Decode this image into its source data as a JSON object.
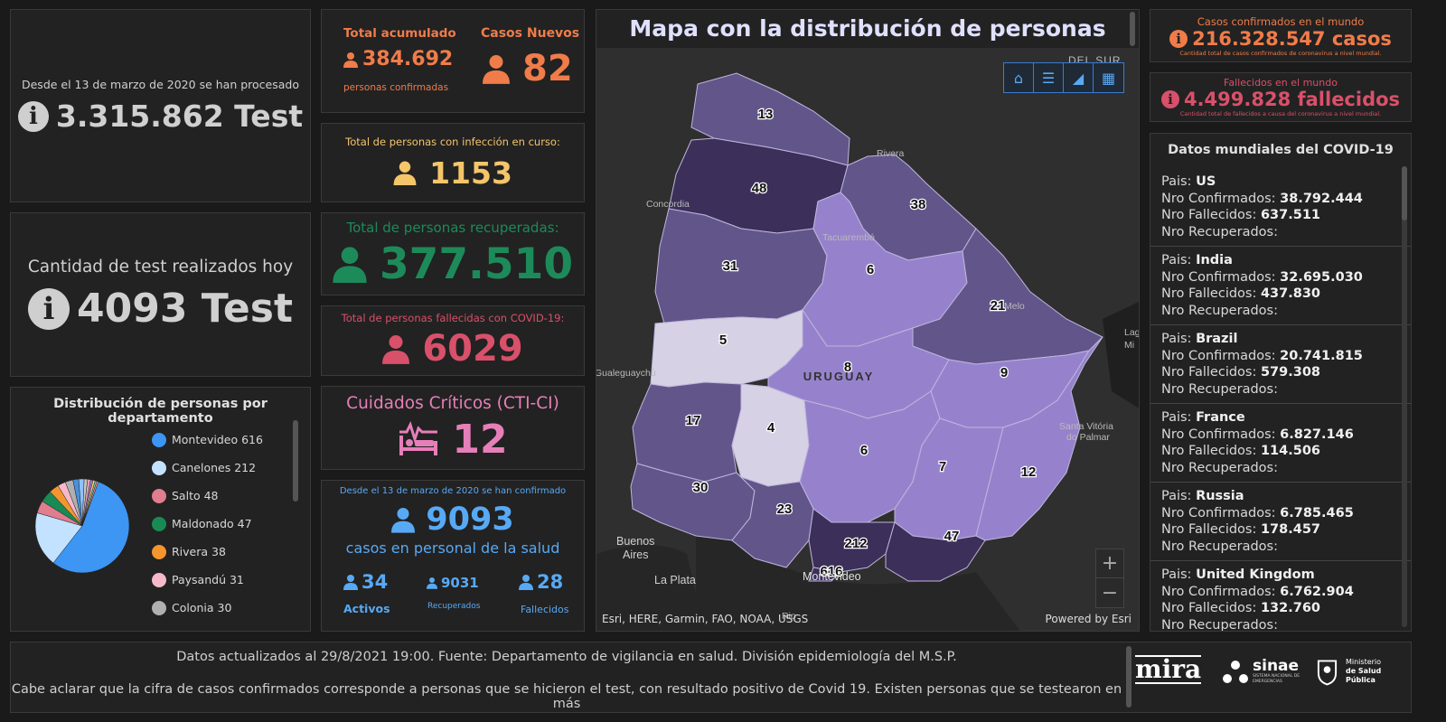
{
  "tests_total": {
    "caption": "Desde el 13 de marzo de 2020 se han procesado",
    "value": "3.315.862 Test"
  },
  "tests_today": {
    "caption": "Cantidad de test realizados hoy",
    "value": "4093 Test"
  },
  "accumulated": {
    "label": "Total acumulado",
    "value": "384.692",
    "sublabel": "personas confirmadas"
  },
  "new_cases": {
    "label": "Casos Nuevos",
    "value": "82"
  },
  "active": {
    "label": "Total de personas con infección en curso:",
    "value": "1153"
  },
  "recovered": {
    "label": "Total de personas recuperadas:",
    "value": "377.510"
  },
  "deaths": {
    "label": "Total de personas fallecidas con COVID-19:",
    "value": "6029"
  },
  "critical": {
    "label": "Cuidados Críticos (CTI-CI)",
    "value": "12"
  },
  "health_staff": {
    "caption": "Desde el 13 de marzo de 2020 se han confirmado",
    "value": "9093",
    "subcaption": "casos en personal de la salud",
    "active_value": "34",
    "active_label": "Activos",
    "recovered_value": "9031",
    "recovered_label": "Recuperados",
    "deaths_value": "28",
    "deaths_label": "Fallecidos"
  },
  "distribution": {
    "title": "Distribución de personas por departamento",
    "legend": [
      {
        "name": "Montevideo",
        "value": "616",
        "color": "#3d95f4"
      },
      {
        "name": "Canelones",
        "value": "212",
        "color": "#c2e2ff"
      },
      {
        "name": "Salto",
        "value": "48",
        "color": "#e07d8f"
      },
      {
        "name": "Maldonado",
        "value": "47",
        "color": "#1a8a55"
      },
      {
        "name": "Rivera",
        "value": "38",
        "color": "#f5952e"
      },
      {
        "name": "Paysandú",
        "value": "31",
        "color": "#f7b9c9"
      },
      {
        "name": "Colonia",
        "value": "30",
        "color": "#b0b0b0"
      }
    ]
  },
  "map": {
    "title": "Mapa con la distribución de personas",
    "attribution": "Esri, HERE, Garmin, FAO, NOAA, USGS",
    "powered": "Powered by Esri",
    "country_label": "URUGUAY",
    "places": {
      "del_sur": "DEL SUR",
      "rivera": "Rivera",
      "concordia": "Concordia",
      "tacuarembo": "Tacuarembó",
      "melo": "Melo",
      "gualeguaychu": "Gualeguaychú",
      "santa_vitoria": "Santa Vitória",
      "do_palmar": "do Palmar",
      "buenos": "Buenos",
      "aires": "Aires",
      "la_plata": "La Plata",
      "montevideo": "Montevideo",
      "lag": "Lag",
      "mi": "Mi",
      "rio": "Rio"
    },
    "counts": {
      "artigas": "13",
      "salto": "48",
      "rivera": "38",
      "paysandu": "31",
      "tacuarembo": "6",
      "cerro_largo": "21",
      "rio_negro": "5",
      "durazno": "8",
      "treinta_y_tres": "9",
      "soriano": "17",
      "flores": "4",
      "florida": "6",
      "lavalleja": "7",
      "rocha": "12",
      "colonia": "30",
      "san_jose": "23",
      "canelones": "212",
      "maldonado": "47",
      "montevideo": "616"
    },
    "colors": {
      "darkest": "#3c2f5a",
      "dark": "#62558a",
      "mid": "#7a68b0",
      "light": "#9682cc",
      "pale": "#d6d1e4"
    }
  },
  "world": {
    "confirmed_label": "Casos confirmados en el mundo",
    "confirmed_value": "216.328.547 casos",
    "confirmed_note": "Cantidad total de casos confirmados de coronavirus a nivel mundial.",
    "deaths_label": "Fallecidos en el mundo",
    "deaths_value": "4.499.828 fallecidos",
    "deaths_note": "Cantidad total de fallecidos a causa del coronavirus a nivel mundial.",
    "list_title": "Datos mundiales del COVID-19",
    "field_country": "Pais:",
    "field_confirmed": "Nro Confirmados:",
    "field_deaths": "Nro Fallecidos:",
    "field_recovered": "Nro Recuperados:",
    "countries": [
      {
        "name": "US",
        "confirmed": "38.792.444",
        "deaths": "637.511"
      },
      {
        "name": "India",
        "confirmed": "32.695.030",
        "deaths": "437.830"
      },
      {
        "name": "Brazil",
        "confirmed": "20.741.815",
        "deaths": "579.308"
      },
      {
        "name": "France",
        "confirmed": "6.827.146",
        "deaths": "114.506"
      },
      {
        "name": "Russia",
        "confirmed": "6.785.465",
        "deaths": "178.457"
      },
      {
        "name": "United Kingdom",
        "confirmed": "6.762.904",
        "deaths": "132.760"
      }
    ]
  },
  "footer": {
    "line1": "Datos actualizados al 29/8/2021 19:00. Fuente: Departamento de vigilancia en salud. División epidemiología del M.S.P.",
    "line2": "Cabe aclarar que la cifra de casos confirmados corresponde a personas que se hicieron el test, con resultado positivo de Covid 19. Existen personas que se testearon en más",
    "logo_mira": "mira",
    "logo_sinae": "sinae",
    "logo_sinae_sub": "SISTEMA NACIONAL DE EMERGENCIAS",
    "logo_msp_1": "Ministerio",
    "logo_msp_2": "de Salud Pública"
  }
}
